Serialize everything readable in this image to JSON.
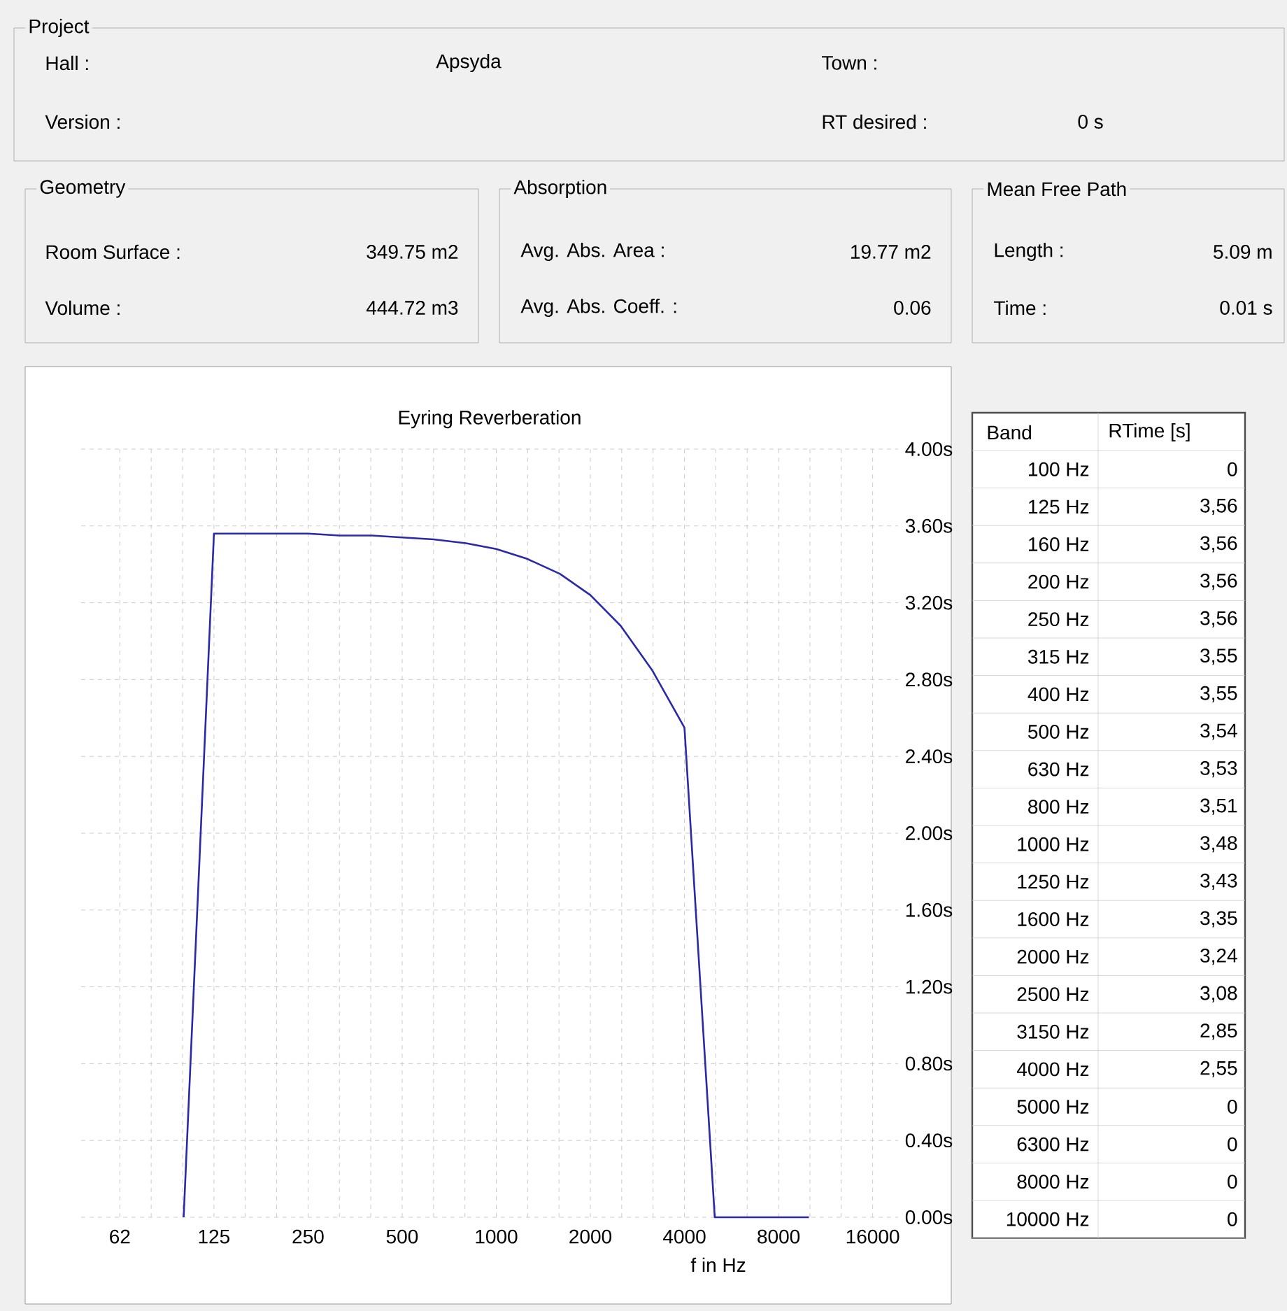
{
  "chart_data": {
    "type": "line",
    "title": "Eyring Reverberation",
    "xlabel": "f in Hz",
    "log": "x",
    "grid": true,
    "x": [
      100,
      125,
      160,
      200,
      250,
      315,
      400,
      500,
      630,
      800,
      1000,
      1250,
      1600,
      2000,
      2500,
      3150,
      4000,
      5000,
      6300,
      8000,
      10000
    ],
    "series": [
      {
        "color": "#2a2aa8",
        "values": [
          0,
          3.56,
          3.56,
          3.56,
          3.56,
          3.55,
          3.55,
          3.54,
          3.53,
          3.51,
          3.48,
          3.43,
          3.35,
          3.24,
          3.08,
          2.85,
          2.55,
          0,
          0,
          0,
          0
        ]
      }
    ],
    "value_labels": [
      "0",
      "3,56",
      "3,56",
      "3,56",
      "3,56",
      "3,55",
      "3,55",
      "3,54",
      "3,53",
      "3,51",
      "3,48",
      "3,43",
      "3,35",
      "3,24",
      "3,08",
      "2,85",
      "2,55",
      "0",
      "0",
      "0",
      "0"
    ],
    "xlim": [
      47,
      19300
    ],
    "ylim": [
      0,
      4.0
    ],
    "xticks": [
      {
        "value": 62.5,
        "label": "62"
      },
      125,
      250,
      500,
      1000,
      2000,
      4000,
      8000,
      16000
    ],
    "yticks": [
      {
        "value": 0,
        "label": "0.00s"
      },
      {
        "value": 0.4,
        "label": "0.40s"
      },
      {
        "value": 0.8,
        "label": "0.80s"
      },
      {
        "value": 1.2,
        "label": "1.20s"
      },
      {
        "value": 1.6,
        "label": "1.60s"
      },
      {
        "value": 2.0,
        "label": "2.00s"
      },
      {
        "value": 2.4,
        "label": "2.40s"
      },
      {
        "value": 2.8,
        "label": "2.80s"
      },
      {
        "value": 3.2,
        "label": "3.20s"
      },
      {
        "value": 3.6,
        "label": "3.60s"
      },
      {
        "value": 4.0,
        "label": "4.00s"
      }
    ],
    "annotations": [
      "Project",
      "Hall :",
      "Apsyda",
      "Town :",
      "Version :",
      "RT desired :",
      "0 s",
      "Geometry",
      "Room Surface :",
      "349.75 m2",
      "Volume :",
      "444.72 m3",
      "Absorption",
      "Avg. Abs. Area :",
      "19.77 m2",
      "Avg. Abs. Coeff. :",
      "0.06",
      "Mean Free Path",
      "Length :",
      "5.09 m",
      "Time :",
      "0.01 s",
      "Band",
      "RTime [s]",
      "100 Hz",
      "125 Hz",
      "160 Hz",
      "200 Hz",
      "250 Hz",
      "315 Hz",
      "400 Hz",
      "500 Hz",
      "630 Hz",
      "800 Hz",
      "1000 Hz",
      "1250 Hz",
      "1600 Hz",
      "2000 Hz",
      "2500 Hz",
      "3150 Hz",
      "4000 Hz",
      "5000 Hz",
      "6300 Hz",
      "8000 Hz",
      "10000 Hz"
    ]
  }
}
